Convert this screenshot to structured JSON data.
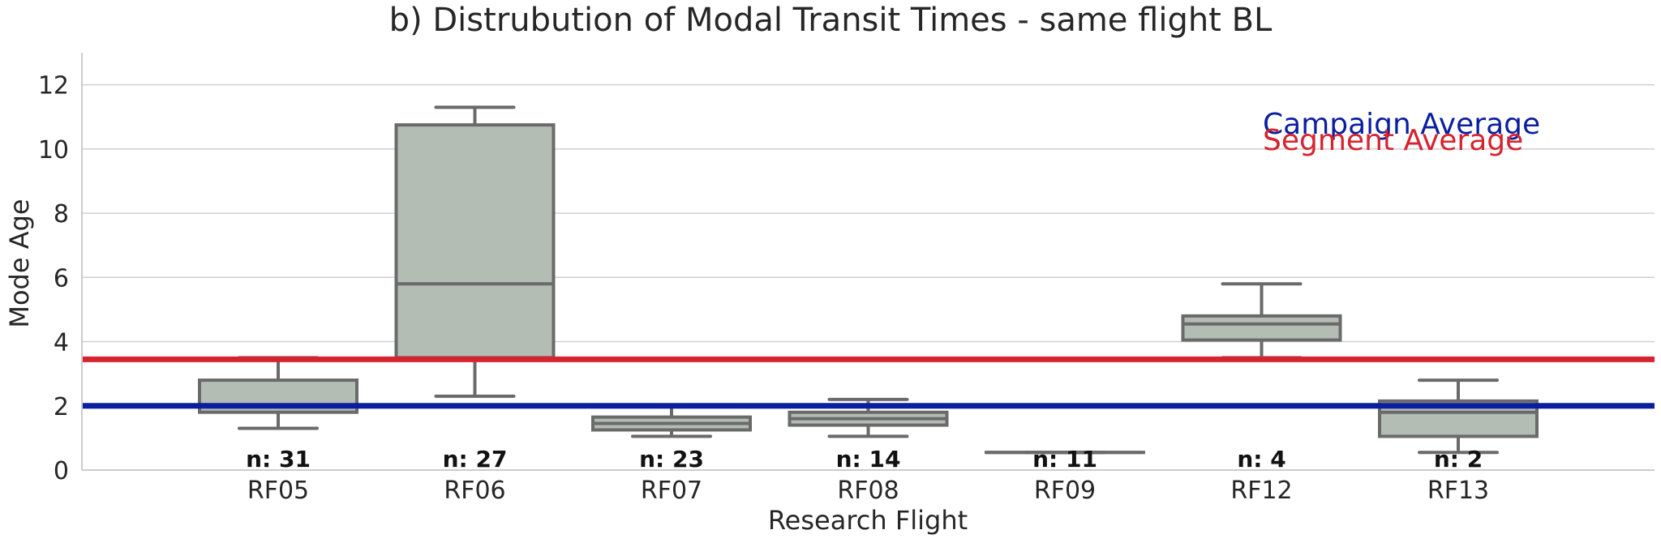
{
  "chart_data": {
    "type": "box",
    "title": "b) Distrubution of Modal Transit Times - same flight BL",
    "xlabel": "Research Flight",
    "ylabel": "Mode Age",
    "ylim": [
      0,
      13
    ],
    "yticks": [
      0,
      2,
      4,
      6,
      8,
      10,
      12
    ],
    "grid": true,
    "categories": [
      "RF05",
      "RF06",
      "RF07",
      "RF08",
      "RF09",
      "RF12",
      "RF13"
    ],
    "boxes": [
      {
        "category": "RF05",
        "whisker_low": 1.3,
        "q1": 1.8,
        "median": 2.0,
        "q3": 2.8,
        "whisker_high": 3.5,
        "n_label": "n: 31"
      },
      {
        "category": "RF06",
        "whisker_low": 2.3,
        "q1": 3.5,
        "median": 5.8,
        "q3": 10.75,
        "whisker_high": 11.3,
        "n_label": "n: 27"
      },
      {
        "category": "RF07",
        "whisker_low": 1.05,
        "q1": 1.25,
        "median": 1.45,
        "q3": 1.65,
        "whisker_high": 2.0,
        "n_label": "n: 23"
      },
      {
        "category": "RF08",
        "whisker_low": 1.05,
        "q1": 1.4,
        "median": 1.6,
        "q3": 1.8,
        "whisker_high": 2.2,
        "n_label": "n: 14"
      },
      {
        "category": "RF09",
        "whisker_low": 0.55,
        "q1": 0.55,
        "median": 0.55,
        "q3": 0.55,
        "whisker_high": 0.55,
        "n_label": "n: 11"
      },
      {
        "category": "RF12",
        "whisker_low": 3.5,
        "q1": 4.05,
        "median": 4.55,
        "q3": 4.8,
        "whisker_high": 5.8,
        "n_label": "n: 4"
      },
      {
        "category": "RF13",
        "whisker_low": 0.55,
        "q1": 1.05,
        "median": 1.8,
        "q3": 2.15,
        "whisker_high": 2.8,
        "n_label": "n: 2"
      }
    ],
    "reference_lines": [
      {
        "name": "Campaign Average",
        "value": 2.0,
        "color": "#0a1fa0"
      },
      {
        "name": "Segment Average",
        "value": 3.45,
        "color": "#d6232f"
      }
    ],
    "legend_placement": "top-right"
  },
  "colors": {
    "box_fill": "#b3bdb4",
    "box_edge": "#6a6a6a",
    "grid": "#cfcfcf",
    "axis": "#cccccc",
    "text": "#262626"
  }
}
